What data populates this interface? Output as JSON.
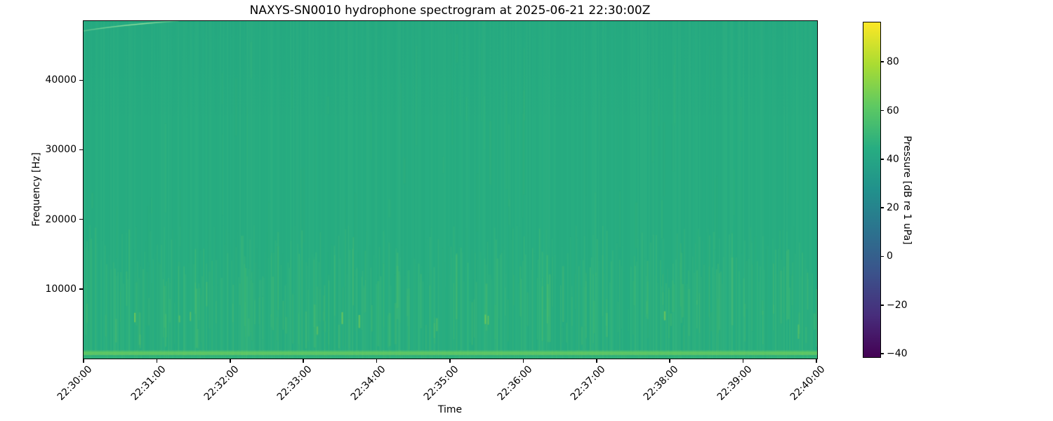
{
  "figure": {
    "background": "#ffffff"
  },
  "chart_data": {
    "type": "heatmap",
    "subtype": "spectrogram",
    "title": "NAXYS-SN0010 hydrophone spectrogram at 2025-06-21 22:30:00Z",
    "xlabel": "Time",
    "ylabel": "Frequency [Hz]",
    "x_ticks": [
      "22:30:00",
      "22:31:00",
      "22:32:00",
      "22:33:00",
      "22:34:00",
      "22:35:00",
      "22:36:00",
      "22:37:00",
      "22:38:00",
      "22:39:00",
      "22:40:00"
    ],
    "x_tick_rotation_deg": 45,
    "xlim_time": [
      "22:30:00",
      "22:40:00"
    ],
    "y_ticks": [
      {
        "value": 10000,
        "label": "10000"
      },
      {
        "value": 20000,
        "label": "20000"
      },
      {
        "value": 30000,
        "label": "30000"
      },
      {
        "value": 40000,
        "label": "40000"
      }
    ],
    "ylim_hz": [
      0,
      48500
    ],
    "grid": false,
    "colorbar": {
      "label": "Pressure [dB re 1 uPa]",
      "ticks": [
        {
          "value": 80,
          "label": "80"
        },
        {
          "value": 60,
          "label": "60"
        },
        {
          "value": 40,
          "label": "40"
        },
        {
          "value": 20,
          "label": "20"
        },
        {
          "value": 0,
          "label": "0"
        },
        {
          "value": -20,
          "label": "−20"
        },
        {
          "value": -40,
          "label": "−40"
        }
      ],
      "vmin": -41.7,
      "vmax": 96.5,
      "colormap": "viridis",
      "colormap_stops": [
        "#440154",
        "#472d7b",
        "#3b528b",
        "#2c728e",
        "#21918c",
        "#27ad81",
        "#5ec962",
        "#aadc32",
        "#fde725"
      ]
    },
    "content_summary": {
      "background_level_db": 45,
      "base_color": "#27ad81",
      "features": [
        {
          "name": "broadband-vertical-striations",
          "freq_range_hz": [
            2000,
            16000
          ],
          "level_db": [
            45,
            55
          ]
        },
        {
          "name": "low-frequency-bright-lines",
          "freq_range_hz": [
            200,
            1200
          ],
          "level_db": [
            58,
            66
          ]
        },
        {
          "name": "faint-upsweep-tone-at-start",
          "time_range": [
            "22:30:00",
            "22:30:50"
          ],
          "freq_range_hz": [
            46500,
            48300
          ]
        },
        {
          "name": "transient-streaks-near-6kHz",
          "freq_hz": 6000,
          "level_db": 58
        }
      ]
    },
    "render": {
      "seed": 20250621,
      "base_color": "#27ad81",
      "top_tint": "rgba(30,148,132,0.10)",
      "striation_light_rgb": "88,199,125",
      "striation_dark_rgb": "28,152,126",
      "band_colors": [
        "#58c66d",
        "#63cb64",
        "#4fc273"
      ],
      "streak_color": "#74d05b",
      "speck_color": "#a4dc3c",
      "arc_rgb": "170,235,165",
      "bottom_lines": [
        {
          "from_bottom": 12,
          "h": 2,
          "color": "rgba(79,195,110,0.45)"
        },
        {
          "from_bottom": 10,
          "h": 3,
          "color": "rgba(98,201,99,0.90)"
        },
        {
          "from_bottom": 7,
          "h": 2,
          "color": "rgba(141,216,84,0.50)"
        },
        {
          "from_bottom": 5,
          "h": 5,
          "color": "rgba(47,176,123,1)"
        }
      ]
    }
  }
}
